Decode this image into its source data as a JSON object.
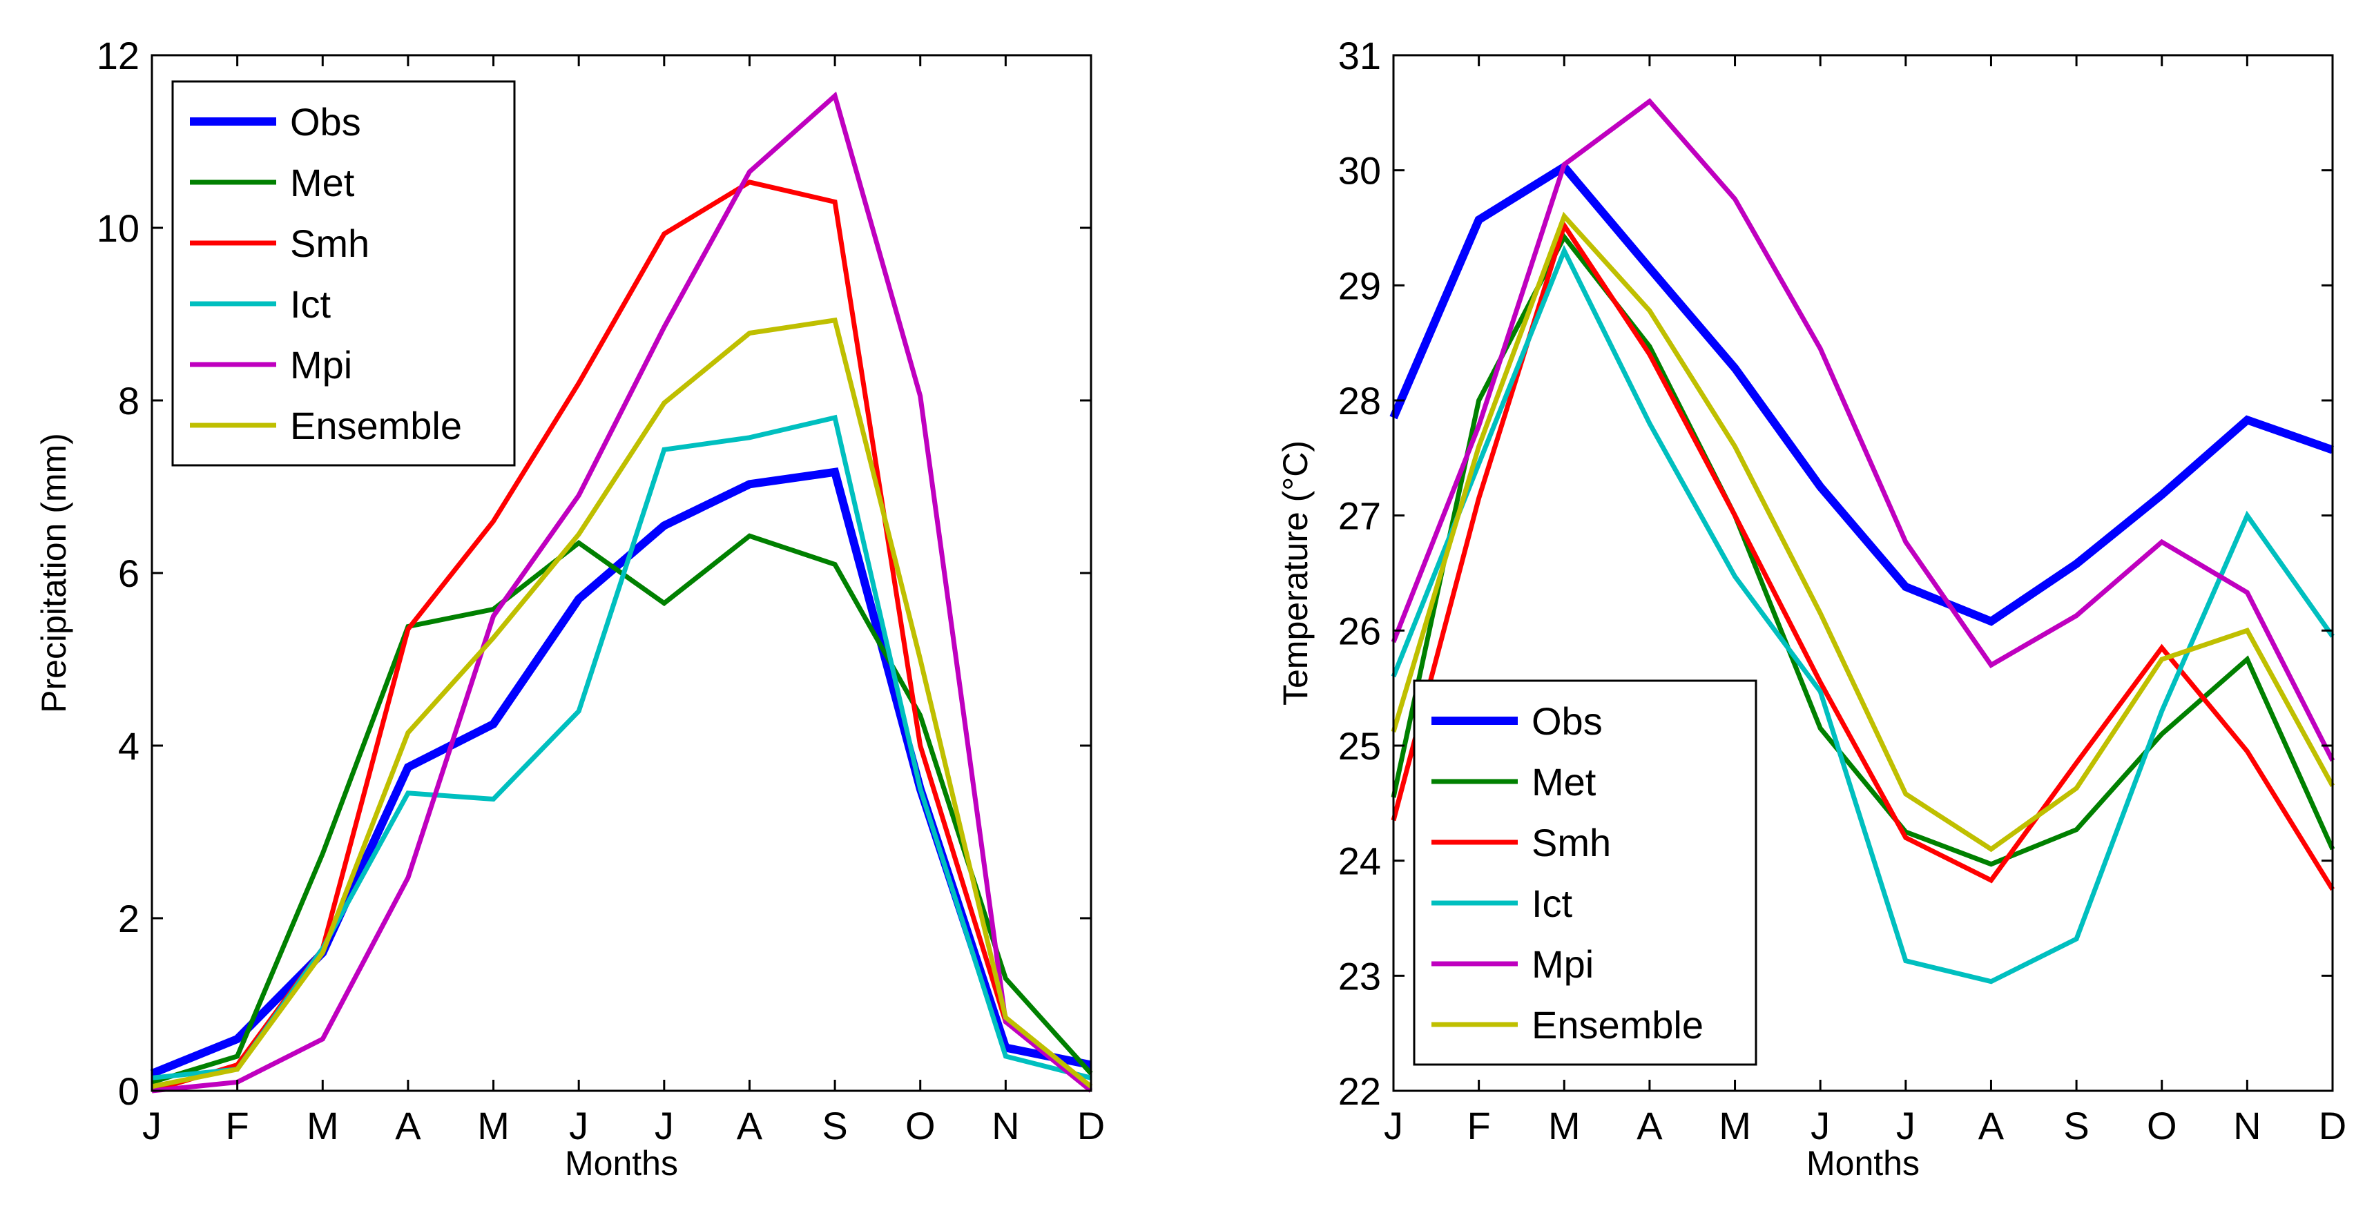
{
  "chart_data": [
    {
      "type": "line",
      "title": "",
      "xlabel": "Months",
      "ylabel": "Precipitation (mm)",
      "categories": [
        "J",
        "F",
        "M",
        "A",
        "M",
        "J",
        "J",
        "A",
        "S",
        "O",
        "N",
        "D"
      ],
      "ylim": [
        0,
        12
      ],
      "yticks": [
        0,
        2,
        4,
        6,
        8,
        10,
        12
      ],
      "legend_location": "top-left",
      "grid": false,
      "series": [
        {
          "name": "Obs",
          "color": "#0000ff",
          "width": "thick",
          "values": [
            0.2,
            0.6,
            1.6,
            3.75,
            4.25,
            5.7,
            6.55,
            7.03,
            7.17,
            3.5,
            0.5,
            0.3
          ]
        },
        {
          "name": "Met",
          "color": "#008000",
          "width": "normal",
          "values": [
            0.1,
            0.4,
            2.75,
            5.38,
            5.58,
            6.35,
            5.65,
            6.43,
            6.1,
            4.35,
            1.3,
            0.2
          ]
        },
        {
          "name": "Smh",
          "color": "#ff0000",
          "width": "normal",
          "values": [
            0.0,
            0.3,
            1.65,
            5.35,
            6.6,
            8.2,
            9.93,
            10.53,
            10.3,
            4.0,
            0.8,
            0.05
          ]
        },
        {
          "name": "Ict",
          "color": "#00bfbf",
          "width": "normal",
          "values": [
            0.15,
            0.25,
            1.65,
            3.45,
            3.38,
            4.4,
            7.43,
            7.57,
            7.8,
            3.5,
            0.4,
            0.15
          ]
        },
        {
          "name": "Mpi",
          "color": "#bf00bf",
          "width": "normal",
          "values": [
            0.0,
            0.1,
            0.6,
            2.47,
            5.5,
            6.9,
            8.85,
            10.65,
            11.53,
            8.05,
            0.8,
            0.0
          ]
        },
        {
          "name": "Ensemble",
          "color": "#bfbf00",
          "width": "normal",
          "values": [
            0.05,
            0.25,
            1.6,
            4.15,
            5.25,
            6.45,
            7.97,
            8.78,
            8.93,
            5.0,
            0.85,
            0.05
          ]
        }
      ]
    },
    {
      "type": "line",
      "title": "",
      "xlabel": "Months",
      "ylabel": "Temperature (°C)",
      "categories": [
        "J",
        "F",
        "M",
        "A",
        "M",
        "J",
        "J",
        "A",
        "S",
        "O",
        "N",
        "D"
      ],
      "ylim": [
        22,
        31
      ],
      "yticks": [
        22,
        23,
        24,
        25,
        26,
        27,
        28,
        29,
        30,
        31
      ],
      "legend_location": "bottom-left",
      "grid": false,
      "series": [
        {
          "name": "Obs",
          "color": "#0000ff",
          "width": "thick",
          "values": [
            27.85,
            29.57,
            30.03,
            29.15,
            28.28,
            27.25,
            26.38,
            26.08,
            26.58,
            27.18,
            27.83,
            27.57
          ]
        },
        {
          "name": "Met",
          "color": "#008000",
          "width": "normal",
          "values": [
            24.55,
            28.0,
            29.42,
            28.47,
            27.0,
            25.15,
            24.25,
            23.97,
            24.27,
            25.1,
            25.75,
            24.1
          ]
        },
        {
          "name": "Smh",
          "color": "#ff0000",
          "width": "normal",
          "values": [
            24.35,
            27.15,
            29.52,
            28.4,
            27.0,
            25.55,
            24.2,
            23.83,
            24.85,
            25.85,
            24.95,
            23.75
          ]
        },
        {
          "name": "Ict",
          "color": "#00bfbf",
          "width": "normal",
          "values": [
            25.6,
            27.45,
            29.3,
            27.8,
            26.47,
            25.47,
            23.13,
            22.95,
            23.32,
            25.3,
            27.0,
            25.95
          ]
        },
        {
          "name": "Mpi",
          "color": "#bf00bf",
          "width": "normal",
          "values": [
            25.9,
            27.78,
            30.05,
            30.6,
            29.75,
            28.45,
            26.77,
            25.7,
            26.13,
            26.77,
            26.33,
            24.87
          ]
        },
        {
          "name": "Ensemble",
          "color": "#bfbf00",
          "width": "normal",
          "values": [
            25.12,
            27.6,
            29.6,
            28.78,
            27.6,
            26.15,
            24.58,
            24.1,
            24.63,
            25.75,
            26.0,
            24.65
          ]
        }
      ]
    }
  ]
}
